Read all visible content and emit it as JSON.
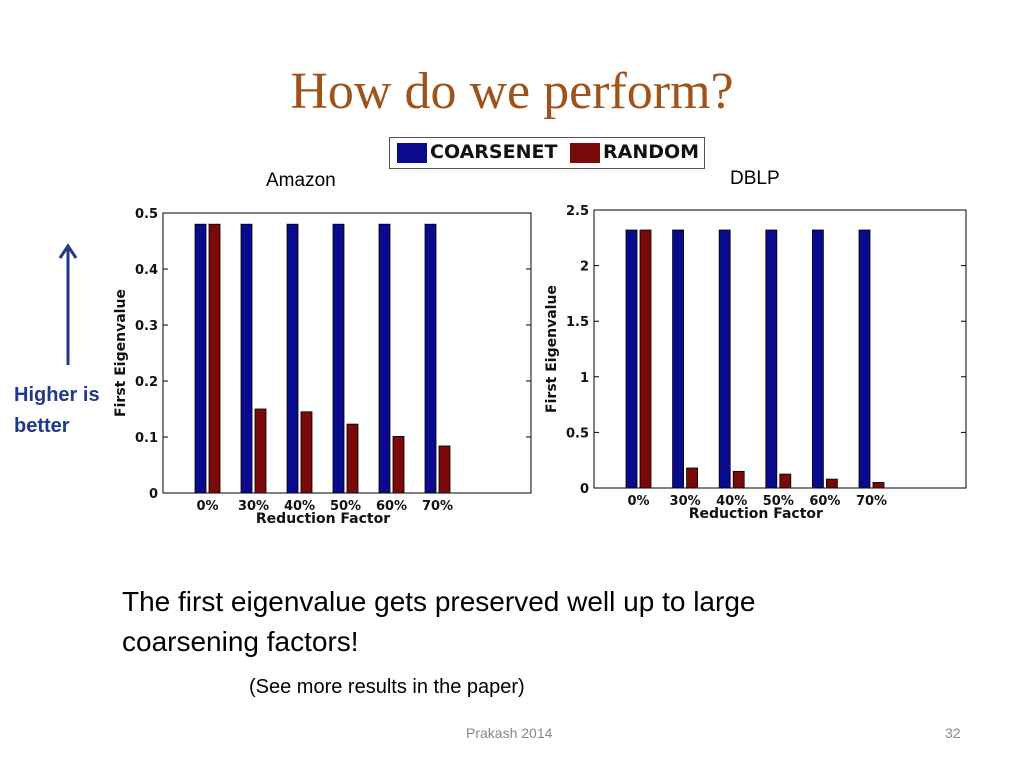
{
  "slide": {
    "title": "How do we perform?",
    "amazon_label": "Amazon",
    "dblp_label": "DBLP",
    "higher_line1": "Higher is",
    "higher_line2": "better",
    "body_text": "The first eigenvalue gets preserved well up to large coarsening factors!",
    "see_more": "(See more results in the paper)",
    "footer": "Prakash 2014",
    "page_number": "32"
  },
  "legend": {
    "items": [
      {
        "label": "COARSENET",
        "color": "#0a0a8c"
      },
      {
        "label": "RANDOM",
        "color": "#7a0a0a"
      }
    ]
  },
  "colors": {
    "title": "#a0521b",
    "arrow": "#1f3a8c",
    "coarsenet": "#0a0a8c",
    "random": "#7a0a0a"
  },
  "chart_data": [
    {
      "type": "bar",
      "title": "Amazon",
      "categories": [
        "0%",
        "30%",
        "40%",
        "50%",
        "60%",
        "70%"
      ],
      "series": [
        {
          "name": "COARSENET",
          "values": [
            0.48,
            0.48,
            0.48,
            0.48,
            0.48,
            0.48
          ]
        },
        {
          "name": "RANDOM",
          "values": [
            0.48,
            0.15,
            0.145,
            0.123,
            0.101,
            0.084
          ]
        }
      ],
      "xlabel": "Reduction Factor",
      "ylabel": "First Eigenvalue",
      "ylim": [
        0,
        0.5
      ],
      "yticks": [
        0,
        0.1,
        0.2,
        0.3,
        0.4,
        0.5
      ],
      "ytick_labels": [
        "0",
        "0.1",
        "0.2",
        "0.3",
        "0.4",
        "0.5"
      ],
      "grid": false
    },
    {
      "type": "bar",
      "title": "DBLP",
      "categories": [
        "0%",
        "30%",
        "40%",
        "50%",
        "60%",
        "70%"
      ],
      "series": [
        {
          "name": "COARSENET",
          "values": [
            2.32,
            2.32,
            2.32,
            2.32,
            2.32,
            2.32
          ]
        },
        {
          "name": "RANDOM",
          "values": [
            2.32,
            0.18,
            0.15,
            0.125,
            0.08,
            0.05
          ]
        }
      ],
      "xlabel": "Reduction Factor",
      "ylabel": "First Eigenvalue",
      "ylim": [
        0,
        2.5
      ],
      "yticks": [
        0,
        0.5,
        1,
        1.5,
        2,
        2.5
      ],
      "ytick_labels": [
        "0",
        "0.5",
        "1",
        "1.5",
        "2",
        "2.5"
      ],
      "grid": false
    }
  ]
}
